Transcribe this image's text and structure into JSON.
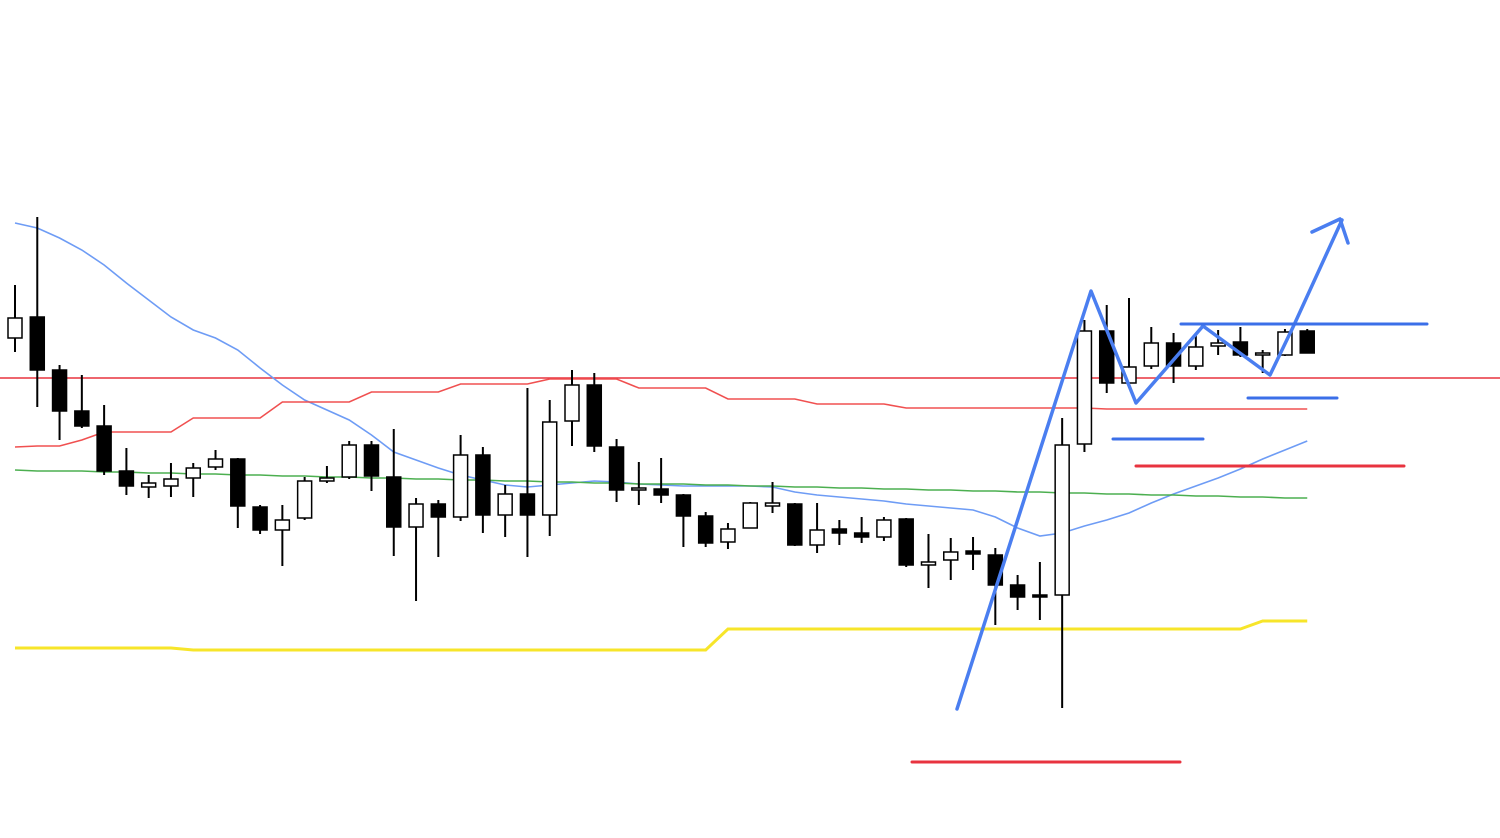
{
  "chart_data": {
    "type": "candlestick",
    "ylim": [
      0,
      838
    ],
    "bull_color": "#ffffff",
    "bear_color": "#000000",
    "outline_color": "#000000",
    "open": [
      500,
      521,
      468,
      427,
      412,
      367,
      351,
      352,
      360,
      371,
      379,
      331,
      308,
      320,
      357,
      361,
      393,
      361,
      311,
      334,
      321,
      383,
      323,
      344,
      323,
      417,
      453,
      391,
      348,
      349,
      343,
      322,
      296,
      310,
      332,
      334,
      293,
      309,
      305,
      301,
      319,
      273,
      278,
      287,
      283,
      253,
      243,
      243,
      394,
      507,
      455,
      472,
      495,
      472,
      492,
      496,
      483,
      483,
      507
    ],
    "high": [
      553,
      621,
      473,
      463,
      433,
      390,
      363,
      375,
      375,
      388,
      380,
      333,
      333,
      361,
      372,
      397,
      397,
      409,
      340,
      338,
      403,
      391,
      353,
      450,
      438,
      468,
      465,
      399,
      376,
      380,
      344,
      326,
      315,
      336,
      356,
      335,
      335,
      318,
      321,
      321,
      320,
      304,
      300,
      301,
      290,
      263,
      276,
      420,
      518,
      533,
      540,
      511,
      505,
      505,
      508,
      511,
      488,
      509,
      509
    ],
    "low": [
      486,
      431,
      398,
      410,
      363,
      343,
      340,
      341,
      341,
      368,
      310,
      304,
      272,
      318,
      355,
      359,
      347,
      282,
      237,
      281,
      317,
      305,
      301,
      281,
      302,
      392,
      386,
      336,
      333,
      335,
      291,
      291,
      289,
      310,
      325,
      292,
      285,
      293,
      295,
      297,
      271,
      250,
      258,
      268,
      213,
      228,
      218,
      130,
      386,
      445,
      450,
      469,
      455,
      468,
      483,
      481,
      465,
      482,
      485
    ],
    "close": [
      520,
      468,
      427,
      412,
      367,
      352,
      355,
      359,
      370,
      379,
      332,
      308,
      318,
      357,
      360,
      393,
      362,
      311,
      334,
      321,
      383,
      323,
      344,
      323,
      416,
      453,
      392,
      348,
      350,
      343,
      322,
      295,
      309,
      335,
      335,
      293,
      308,
      305,
      301,
      318,
      273,
      276,
      286,
      284,
      253,
      241,
      241,
      393,
      507,
      455,
      471,
      495,
      472,
      491,
      495,
      483,
      485,
      506,
      485
    ],
    "series": [
      {
        "color": "#6e9cf5",
        "values": [
          615,
          610,
          600,
          588,
          573,
          555,
          538,
          521,
          508,
          500,
          488,
          470,
          453,
          438,
          428,
          418,
          403,
          386,
          378,
          370,
          363,
          358,
          353,
          351,
          353,
          355,
          357,
          356,
          354,
          353,
          352,
          352,
          352,
          352,
          351,
          346,
          343,
          341,
          339,
          337,
          334,
          332,
          330,
          328,
          321,
          310,
          302,
          305,
          312,
          318,
          325,
          335,
          344,
          352,
          360,
          369,
          379,
          388,
          397
        ]
      },
      {
        "color": "#f05050",
        "values": [
          391,
          392,
          392,
          398,
          406,
          406,
          406,
          406,
          420,
          420,
          420,
          420,
          436,
          436,
          436,
          436,
          446,
          446,
          446,
          446,
          454,
          454,
          454,
          454,
          459,
          459,
          459,
          459,
          450,
          450,
          450,
          450,
          439,
          439,
          439,
          439,
          434,
          434,
          434,
          434,
          430,
          430,
          430,
          430,
          430,
          430,
          430,
          430,
          430,
          429,
          429,
          429,
          429,
          429,
          429,
          429,
          429,
          429,
          429
        ]
      },
      {
        "color": "#4caf50",
        "values": [
          368,
          367,
          367,
          367,
          366,
          366,
          365,
          365,
          364,
          364,
          363,
          363,
          362,
          362,
          361,
          361,
          360,
          360,
          359,
          359,
          358,
          358,
          357,
          357,
          356,
          356,
          355,
          355,
          354,
          354,
          354,
          353,
          353,
          352,
          352,
          351,
          351,
          350,
          350,
          349,
          349,
          348,
          348,
          347,
          347,
          346,
          346,
          345,
          345,
          344,
          344,
          343,
          343,
          342,
          342,
          341,
          341,
          340,
          340
        ]
      },
      {
        "color": "#f7e52a",
        "values": [
          190,
          190,
          190,
          190,
          190,
          190,
          190,
          190,
          188,
          188,
          188,
          188,
          188,
          188,
          188,
          188,
          188,
          188,
          188,
          188,
          188,
          188,
          188,
          188,
          188,
          188,
          188,
          188,
          188,
          188,
          188,
          188,
          209,
          209,
          209,
          209,
          209,
          209,
          209,
          209,
          209,
          209,
          209,
          209,
          209,
          209,
          209,
          209,
          209,
          209,
          209,
          209,
          209,
          209,
          209,
          209,
          217,
          217,
          217
        ]
      }
    ],
    "hline": {
      "value": 460,
      "color": "#e8333f"
    }
  }
}
